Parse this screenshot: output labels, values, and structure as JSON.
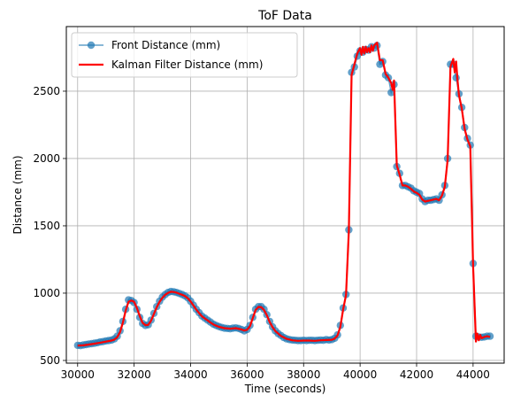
{
  "chart_data": {
    "type": "line",
    "title": "ToF Data",
    "xlabel": "Time (seconds)",
    "ylabel": "Distance (mm)",
    "xlim": [
      29600,
      45100
    ],
    "ylim": [
      480,
      2980
    ],
    "xticks": [
      30000,
      32000,
      34000,
      36000,
      38000,
      40000,
      42000,
      44000
    ],
    "yticks": [
      500,
      1000,
      1500,
      2000,
      2500
    ],
    "grid": true,
    "legend_position": "upper-left",
    "series": [
      {
        "name": "Front Distance (mm)",
        "color": "#1f77b4",
        "marker": "circle",
        "points": [
          [
            30000,
            612
          ],
          [
            30100,
            610
          ],
          [
            30200,
            615
          ],
          [
            30300,
            618
          ],
          [
            30400,
            622
          ],
          [
            30500,
            625
          ],
          [
            30600,
            628
          ],
          [
            30700,
            632
          ],
          [
            30800,
            637
          ],
          [
            30900,
            640
          ],
          [
            31000,
            645
          ],
          [
            31100,
            648
          ],
          [
            31200,
            652
          ],
          [
            31300,
            660
          ],
          [
            31400,
            680
          ],
          [
            31500,
            720
          ],
          [
            31600,
            790
          ],
          [
            31700,
            880
          ],
          [
            31800,
            950
          ],
          [
            31900,
            945
          ],
          [
            32000,
            930
          ],
          [
            32100,
            880
          ],
          [
            32200,
            820
          ],
          [
            32300,
            775
          ],
          [
            32400,
            760
          ],
          [
            32500,
            765
          ],
          [
            32600,
            800
          ],
          [
            32700,
            850
          ],
          [
            32800,
            900
          ],
          [
            32900,
            940
          ],
          [
            33000,
            970
          ],
          [
            33100,
            990
          ],
          [
            33200,
            1005
          ],
          [
            33300,
            1012
          ],
          [
            33400,
            1010
          ],
          [
            33500,
            1005
          ],
          [
            33600,
            998
          ],
          [
            33700,
            990
          ],
          [
            33800,
            980
          ],
          [
            33900,
            965
          ],
          [
            34000,
            940
          ],
          [
            34100,
            910
          ],
          [
            34200,
            880
          ],
          [
            34300,
            855
          ],
          [
            34400,
            830
          ],
          [
            34500,
            815
          ],
          [
            34600,
            800
          ],
          [
            34700,
            785
          ],
          [
            34800,
            770
          ],
          [
            34900,
            760
          ],
          [
            35000,
            752
          ],
          [
            35100,
            745
          ],
          [
            35200,
            740
          ],
          [
            35300,
            738
          ],
          [
            35400,
            735
          ],
          [
            35500,
            740
          ],
          [
            35600,
            742
          ],
          [
            35700,
            738
          ],
          [
            35800,
            730
          ],
          [
            35900,
            720
          ],
          [
            36000,
            730
          ],
          [
            36100,
            760
          ],
          [
            36200,
            820
          ],
          [
            36300,
            880
          ],
          [
            36400,
            900
          ],
          [
            36500,
            900
          ],
          [
            36600,
            880
          ],
          [
            36700,
            840
          ],
          [
            36800,
            790
          ],
          [
            36900,
            750
          ],
          [
            37000,
            720
          ],
          [
            37100,
            700
          ],
          [
            37200,
            685
          ],
          [
            37300,
            670
          ],
          [
            37400,
            660
          ],
          [
            37500,
            655
          ],
          [
            37600,
            652
          ],
          [
            37700,
            650
          ],
          [
            37800,
            648
          ],
          [
            37900,
            648
          ],
          [
            38000,
            650
          ],
          [
            38100,
            648
          ],
          [
            38200,
            650
          ],
          [
            38300,
            650
          ],
          [
            38400,
            648
          ],
          [
            38500,
            650
          ],
          [
            38600,
            652
          ],
          [
            38700,
            650
          ],
          [
            38800,
            655
          ],
          [
            38900,
            652
          ],
          [
            39000,
            655
          ],
          [
            39100,
            665
          ],
          [
            39200,
            690
          ],
          [
            39300,
            760
          ],
          [
            39400,
            890
          ],
          [
            39500,
            990
          ],
          [
            39600,
            1470
          ],
          [
            39700,
            2640
          ],
          [
            39800,
            2680
          ],
          [
            39900,
            2760
          ],
          [
            40000,
            2800
          ],
          [
            40100,
            2790
          ],
          [
            40200,
            2810
          ],
          [
            40300,
            2805
          ],
          [
            40400,
            2830
          ],
          [
            40500,
            2820
          ],
          [
            40600,
            2840
          ],
          [
            40700,
            2700
          ],
          [
            40800,
            2720
          ],
          [
            40900,
            2620
          ],
          [
            41000,
            2600
          ],
          [
            41100,
            2490
          ],
          [
            41200,
            2550
          ],
          [
            41300,
            1940
          ],
          [
            41400,
            1890
          ],
          [
            41500,
            1800
          ],
          [
            41600,
            1800
          ],
          [
            41700,
            1790
          ],
          [
            41800,
            1780
          ],
          [
            41900,
            1760
          ],
          [
            42000,
            1750
          ],
          [
            42100,
            1740
          ],
          [
            42200,
            1700
          ],
          [
            42300,
            1680
          ],
          [
            42400,
            1690
          ],
          [
            42500,
            1690
          ],
          [
            42600,
            1695
          ],
          [
            42700,
            1700
          ],
          [
            42800,
            1690
          ],
          [
            42900,
            1730
          ],
          [
            43000,
            1800
          ],
          [
            43100,
            2000
          ],
          [
            43200,
            2700
          ],
          [
            43300,
            2700
          ],
          [
            43400,
            2600
          ],
          [
            43500,
            2480
          ],
          [
            43600,
            2380
          ],
          [
            43700,
            2230
          ],
          [
            43800,
            2150
          ],
          [
            43900,
            2100
          ],
          [
            44000,
            1220
          ],
          [
            44100,
            680
          ],
          [
            44200,
            675
          ],
          [
            44300,
            672
          ],
          [
            44400,
            675
          ],
          [
            44500,
            680
          ],
          [
            44600,
            680
          ]
        ]
      },
      {
        "name": "Kalman Filter Distance (mm)",
        "color": "#ff0000",
        "points": [
          [
            30000,
            610
          ],
          [
            30200,
            612
          ],
          [
            30400,
            618
          ],
          [
            30600,
            625
          ],
          [
            30800,
            632
          ],
          [
            31000,
            640
          ],
          [
            31200,
            648
          ],
          [
            31300,
            655
          ],
          [
            31400,
            672
          ],
          [
            31500,
            710
          ],
          [
            31600,
            780
          ],
          [
            31700,
            870
          ],
          [
            31800,
            935
          ],
          [
            31900,
            945
          ],
          [
            32000,
            935
          ],
          [
            32100,
            890
          ],
          [
            32200,
            830
          ],
          [
            32300,
            780
          ],
          [
            32400,
            762
          ],
          [
            32500,
            764
          ],
          [
            32600,
            795
          ],
          [
            32700,
            845
          ],
          [
            32800,
            895
          ],
          [
            32900,
            935
          ],
          [
            33000,
            965
          ],
          [
            33100,
            988
          ],
          [
            33200,
            1002
          ],
          [
            33300,
            1010
          ],
          [
            33400,
            1008
          ],
          [
            33500,
            1004
          ],
          [
            33600,
            996
          ],
          [
            33700,
            988
          ],
          [
            33800,
            978
          ],
          [
            33900,
            962
          ],
          [
            34000,
            938
          ],
          [
            34100,
            908
          ],
          [
            34200,
            878
          ],
          [
            34300,
            852
          ],
          [
            34400,
            828
          ],
          [
            34500,
            812
          ],
          [
            34600,
            798
          ],
          [
            34700,
            782
          ],
          [
            34800,
            768
          ],
          [
            34900,
            758
          ],
          [
            35000,
            750
          ],
          [
            35200,
            740
          ],
          [
            35400,
            736
          ],
          [
            35600,
            740
          ],
          [
            35800,
            730
          ],
          [
            35900,
            722
          ],
          [
            36000,
            728
          ],
          [
            36100,
            755
          ],
          [
            36200,
            815
          ],
          [
            36300,
            875
          ],
          [
            36400,
            898
          ],
          [
            36500,
            895
          ],
          [
            36600,
            875
          ],
          [
            36700,
            835
          ],
          [
            36800,
            785
          ],
          [
            36900,
            748
          ],
          [
            37000,
            718
          ],
          [
            37200,
            682
          ],
          [
            37400,
            660
          ],
          [
            37600,
            650
          ],
          [
            37800,
            646
          ],
          [
            38000,
            648
          ],
          [
            38200,
            648
          ],
          [
            38400,
            646
          ],
          [
            38600,
            650
          ],
          [
            38800,
            652
          ],
          [
            39000,
            654
          ],
          [
            39100,
            662
          ],
          [
            39200,
            685
          ],
          [
            39300,
            750
          ],
          [
            39400,
            880
          ],
          [
            39500,
            985
          ],
          [
            39600,
            1460
          ],
          [
            39700,
            2620
          ],
          [
            39800,
            2700
          ],
          [
            39900,
            2780
          ],
          [
            40000,
            2820
          ],
          [
            40050,
            2770
          ],
          [
            40100,
            2830
          ],
          [
            40150,
            2780
          ],
          [
            40200,
            2830
          ],
          [
            40250,
            2790
          ],
          [
            40300,
            2820
          ],
          [
            40350,
            2790
          ],
          [
            40400,
            2840
          ],
          [
            40450,
            2800
          ],
          [
            40500,
            2840
          ],
          [
            40600,
            2860
          ],
          [
            40700,
            2730
          ],
          [
            40800,
            2730
          ],
          [
            40900,
            2630
          ],
          [
            41000,
            2600
          ],
          [
            41100,
            2560
          ],
          [
            41150,
            2510
          ],
          [
            41200,
            2580
          ],
          [
            41300,
            1950
          ],
          [
            41400,
            1880
          ],
          [
            41500,
            1800
          ],
          [
            41600,
            1800
          ],
          [
            41700,
            1790
          ],
          [
            41800,
            1775
          ],
          [
            41900,
            1755
          ],
          [
            42000,
            1745
          ],
          [
            42100,
            1730
          ],
          [
            42200,
            1695
          ],
          [
            42300,
            1680
          ],
          [
            42400,
            1685
          ],
          [
            42500,
            1690
          ],
          [
            42600,
            1695
          ],
          [
            42700,
            1700
          ],
          [
            42800,
            1690
          ],
          [
            42900,
            1725
          ],
          [
            43000,
            1790
          ],
          [
            43100,
            1990
          ],
          [
            43200,
            2680
          ],
          [
            43250,
            2710
          ],
          [
            43300,
            2740
          ],
          [
            43350,
            2640
          ],
          [
            43400,
            2720
          ],
          [
            43450,
            2580
          ],
          [
            43500,
            2470
          ],
          [
            43600,
            2370
          ],
          [
            43700,
            2220
          ],
          [
            43800,
            2140
          ],
          [
            43900,
            2090
          ],
          [
            44000,
            1200
          ],
          [
            44100,
            640
          ],
          [
            44150,
            700
          ],
          [
            44200,
            650
          ],
          [
            44250,
            690
          ],
          [
            44300,
            665
          ],
          [
            44400,
            675
          ],
          [
            44500,
            680
          ],
          [
            44600,
            675
          ]
        ]
      }
    ]
  }
}
